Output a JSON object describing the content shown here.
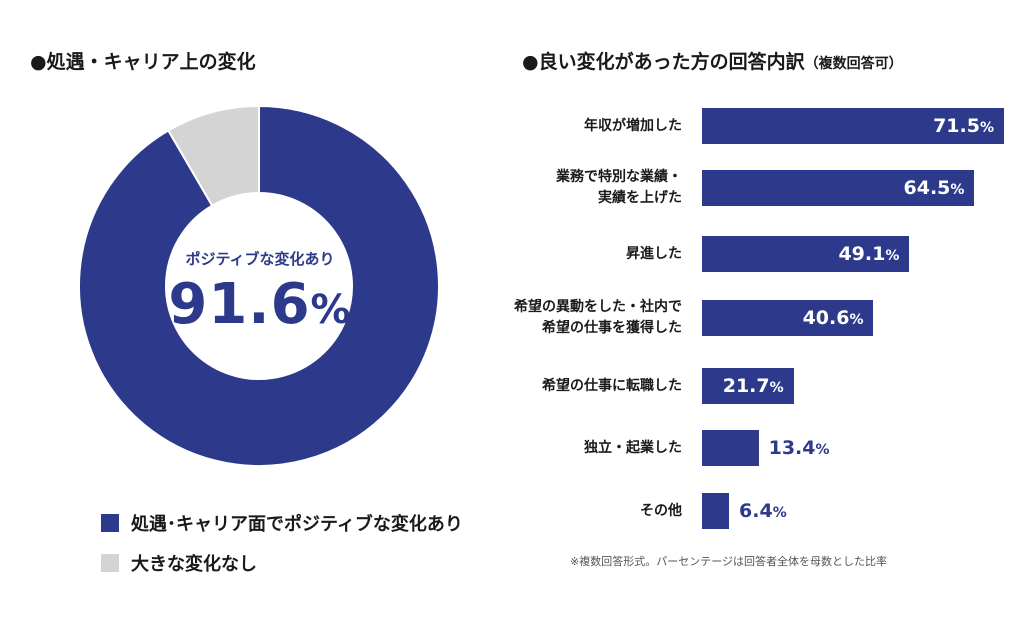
{
  "left_heading": "●処遇・キャリア上の変化",
  "right_heading": "●良い変化があった方の回答内訳",
  "right_heading_note": "（複数回答可）",
  "colors": {
    "primary": "#2d3a8c",
    "secondary": "#d4d4d4"
  },
  "donut": {
    "center_subtitle": "ポジティブな変化あり",
    "center_value": "91.6",
    "center_unit": "%"
  },
  "legend": [
    {
      "label": "処遇･キャリア面でポジティブな変化あり",
      "color": "#2d3a8c"
    },
    {
      "label": "大きな変化なし",
      "color": "#d4d4d4"
    }
  ],
  "footnote": "※複数回答形式。パーセンテージは回答者全体を母数とした比率",
  "chart_data": [
    {
      "type": "pie",
      "title": "●処遇・キャリア上の変化",
      "categories": [
        "処遇･キャリア面でポジティブな変化あり",
        "大きな変化なし"
      ],
      "values": [
        91.6,
        8.4
      ],
      "colors": [
        "#2d3a8c",
        "#d4d4d4"
      ],
      "legend": "bottom"
    },
    {
      "type": "bar",
      "orientation": "horizontal",
      "title": "●良い変化があった方の回答内訳（複数回答可）",
      "categories": [
        "年収が増加した",
        "業務で特別な業績・\n実績を上げた",
        "昇進した",
        "希望の異動をした・社内で\n希望の仕事を獲得した",
        "希望の仕事に転職した",
        "独立・起業した",
        "その他"
      ],
      "values": [
        71.5,
        64.5,
        49.1,
        40.6,
        21.7,
        13.4,
        6.4
      ],
      "unit": "%",
      "xlim": [
        0,
        71.5
      ],
      "grid": false
    }
  ]
}
